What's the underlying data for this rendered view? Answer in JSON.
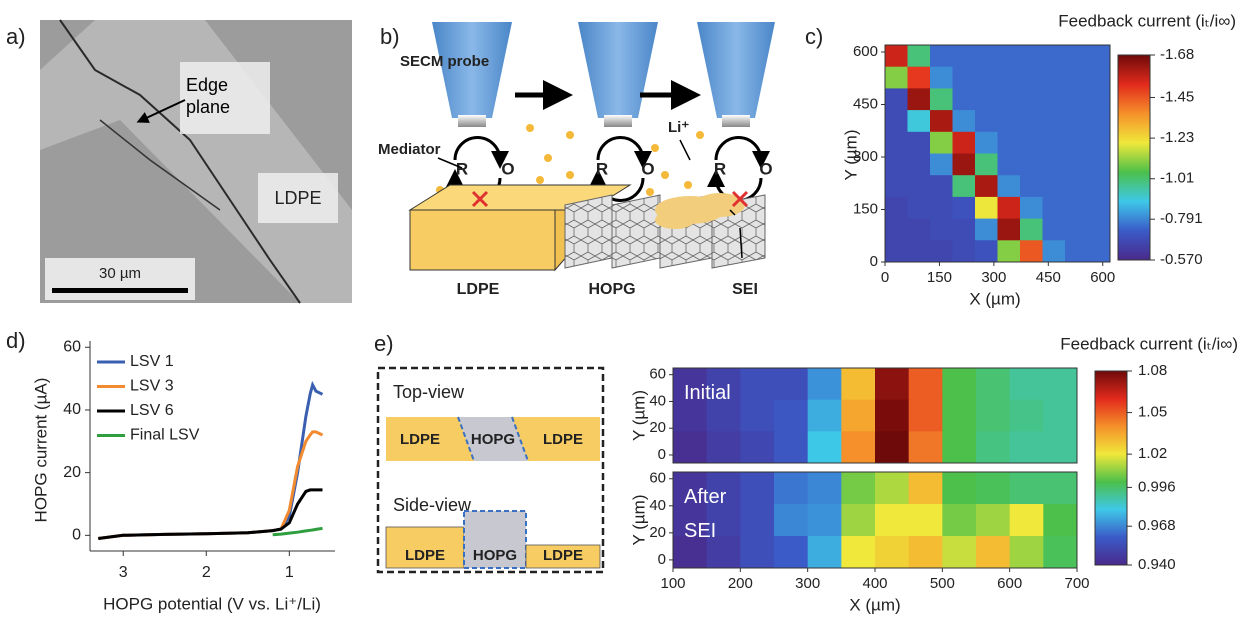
{
  "panel_a": {
    "label": "a)",
    "edge_label": "Edge plane",
    "material_label": "LDPE",
    "scale_bar": "30 µm"
  },
  "panel_b": {
    "label": "b)",
    "probe_label": "SECM probe",
    "mediator_label": "Mediator",
    "reduced": "R",
    "oxidized": "O",
    "ion_label": "Li⁺",
    "materials": [
      "LDPE",
      "HOPG",
      "SEI"
    ]
  },
  "panel_e": {
    "label": "e)",
    "top_view": "Top-view",
    "side_view": "Side-view",
    "top_materials": [
      "LDPE",
      "HOPG",
      "LDPE"
    ],
    "side_materials": [
      "LDPE",
      "HOPG",
      "LDPE"
    ]
  },
  "chart_data": [
    {
      "type": "heatmap",
      "panel_label": "c)",
      "colorbar_title": "Feedback current (iₜ/i∞)",
      "x_label": "X (µm)",
      "y_label": "Y (µm)",
      "xlim": [
        0,
        620
      ],
      "ylim": [
        0,
        620
      ],
      "xticks": [
        0,
        150,
        300,
        450,
        600
      ],
      "yticks": [
        0,
        150,
        300,
        450,
        600
      ],
      "clim": [
        -0.57,
        -1.68
      ],
      "cticks": [
        -1.68,
        -1.45,
        -1.23,
        -1.01,
        -0.791,
        {
          "value": -0.57,
          "label": "-0.570"
        }
      ],
      "colormap": [
        "#4a2a8c",
        "#3a5bc8",
        "#3ec8e8",
        "#4cc04a",
        "#f0e83a",
        "#f5902a",
        "#e22a1c",
        "#6e0a0a"
      ],
      "z": [
        [
          -1.55,
          -1.0,
          -0.75,
          -0.75,
          -0.75,
          -0.75,
          -0.75,
          -0.75,
          -0.75,
          -0.75
        ],
        [
          -1.1,
          -1.5,
          -0.8,
          -0.75,
          -0.75,
          -0.75,
          -0.75,
          -0.75,
          -0.75,
          -0.75
        ],
        [
          -0.68,
          -1.62,
          -1.0,
          -0.75,
          -0.75,
          -0.75,
          -0.75,
          -0.75,
          -0.75,
          -0.75
        ],
        [
          -0.68,
          -0.9,
          -1.6,
          -0.8,
          -0.75,
          -0.75,
          -0.75,
          -0.75,
          -0.75,
          -0.75
        ],
        [
          -0.68,
          -0.68,
          -1.1,
          -1.55,
          -0.8,
          -0.75,
          -0.75,
          -0.75,
          -0.75,
          -0.75
        ],
        [
          -0.68,
          -0.68,
          -0.8,
          -1.62,
          -1.0,
          -0.75,
          -0.75,
          -0.75,
          -0.75,
          -0.75
        ],
        [
          -0.68,
          -0.68,
          -0.68,
          -1.0,
          -1.6,
          -0.8,
          -0.75,
          -0.75,
          -0.75,
          -0.75
        ],
        [
          -0.66,
          -0.68,
          -0.68,
          -0.7,
          -1.2,
          -1.55,
          -0.8,
          -0.75,
          -0.75,
          -0.75
        ],
        [
          -0.66,
          -0.66,
          -0.68,
          -0.68,
          -0.8,
          -1.62,
          -1.0,
          -0.75,
          -0.75,
          -0.75
        ],
        [
          -0.66,
          -0.66,
          -0.66,
          -0.68,
          -0.7,
          -1.1,
          -1.45,
          -0.8,
          -0.75,
          -0.75
        ]
      ]
    },
    {
      "type": "line",
      "panel_label": "d)",
      "x_label": "HOPG potential (V vs. Li⁺/Li)",
      "y_label": "HOPG current (µA)",
      "xlim": [
        3.4,
        0.45
      ],
      "ylim": [
        -5,
        62
      ],
      "xticks": [
        3,
        2,
        1
      ],
      "yticks": [
        0,
        20,
        40,
        60
      ],
      "x": [
        3.3,
        3.0,
        2.5,
        2.0,
        1.5,
        1.2,
        1.1,
        1.0,
        0.9,
        0.8,
        0.75,
        0.72,
        0.68,
        0.6
      ],
      "series": [
        {
          "name": "LSV 1",
          "color": "#3a5fb0",
          "values": [
            -1,
            0,
            0.3,
            0.5,
            0.8,
            1.5,
            2,
            6,
            20,
            38,
            45,
            48,
            46,
            45
          ]
        },
        {
          "name": "LSV 3",
          "color": "#f28a30",
          "values": [
            -1,
            0,
            0.3,
            0.5,
            0.8,
            1.5,
            2,
            8,
            22,
            30,
            32,
            33,
            33,
            32
          ]
        },
        {
          "name": "LSV 6",
          "color": "#000000",
          "values": [
            -1,
            0,
            0.3,
            0.5,
            0.8,
            1.5,
            2,
            4,
            10,
            14,
            14.5,
            14.5,
            14.5,
            14.5
          ]
        },
        {
          "name": "Final LSV",
          "color": "#2e9e3e",
          "values": [
            null,
            null,
            null,
            null,
            null,
            0.2,
            0.4,
            0.7,
            1.0,
            1.4,
            1.6,
            1.7,
            1.9,
            2.2
          ]
        }
      ]
    },
    {
      "type": "heatmap",
      "annotation": "Initial",
      "y_label": "Y (µm)",
      "xlim": [
        100,
        700
      ],
      "ylim": [
        -6,
        65
      ],
      "yticks": [
        0,
        20,
        40,
        60
      ],
      "clim": [
        0.94,
        1.08
      ],
      "colormap": [
        "#4a2a8c",
        "#3a5bc8",
        "#3ec8e8",
        "#4cc04a",
        "#f0e83a",
        "#f5902a",
        "#e22a1c",
        "#6e0a0a"
      ],
      "z": [
        [
          0.945,
          0.95,
          0.955,
          0.955,
          0.97,
          1.03,
          1.075,
          1.05,
          1.0,
          0.995,
          0.99,
          0.99
        ],
        [
          0.945,
          0.95,
          0.955,
          0.958,
          0.975,
          1.035,
          1.078,
          1.05,
          1.0,
          0.995,
          0.992,
          0.99
        ],
        [
          0.942,
          0.948,
          0.952,
          0.958,
          0.98,
          1.04,
          1.08,
          1.045,
          1.0,
          0.993,
          0.99,
          0.99
        ]
      ]
    },
    {
      "type": "heatmap",
      "annotation": "After SEI",
      "y_label": "Y (µm)",
      "x_label": "X (µm)",
      "colorbar_title": "Feedback current (iₜ/i∞)",
      "xlim": [
        100,
        700
      ],
      "ylim": [
        -6,
        65
      ],
      "xticks": [
        100,
        200,
        300,
        400,
        500,
        600,
        700
      ],
      "yticks": [
        0,
        20,
        40,
        60
      ],
      "clim": [
        0.94,
        1.08
      ],
      "cticks": [
        1.08,
        1.05,
        1.02,
        0.996,
        0.968,
        {
          "value": 0.94,
          "label": "0.940"
        }
      ],
      "colormap": [
        "#4a2a8c",
        "#3a5bc8",
        "#3ec8e8",
        "#4cc04a",
        "#f0e83a",
        "#f5902a",
        "#e22a1c",
        "#6e0a0a"
      ],
      "z": [
        [
          0.945,
          0.95,
          0.955,
          0.965,
          0.968,
          1.005,
          1.012,
          1.03,
          1.0,
          0.998,
          0.995,
          0.995
        ],
        [
          0.945,
          0.95,
          0.955,
          0.968,
          0.97,
          1.01,
          1.02,
          1.02,
          1.005,
          1.01,
          1.02,
          1.0
        ],
        [
          0.942,
          0.948,
          0.955,
          0.96,
          0.975,
          1.02,
          1.025,
          1.03,
          1.015,
          1.03,
          1.01,
          0.998
        ]
      ]
    }
  ]
}
